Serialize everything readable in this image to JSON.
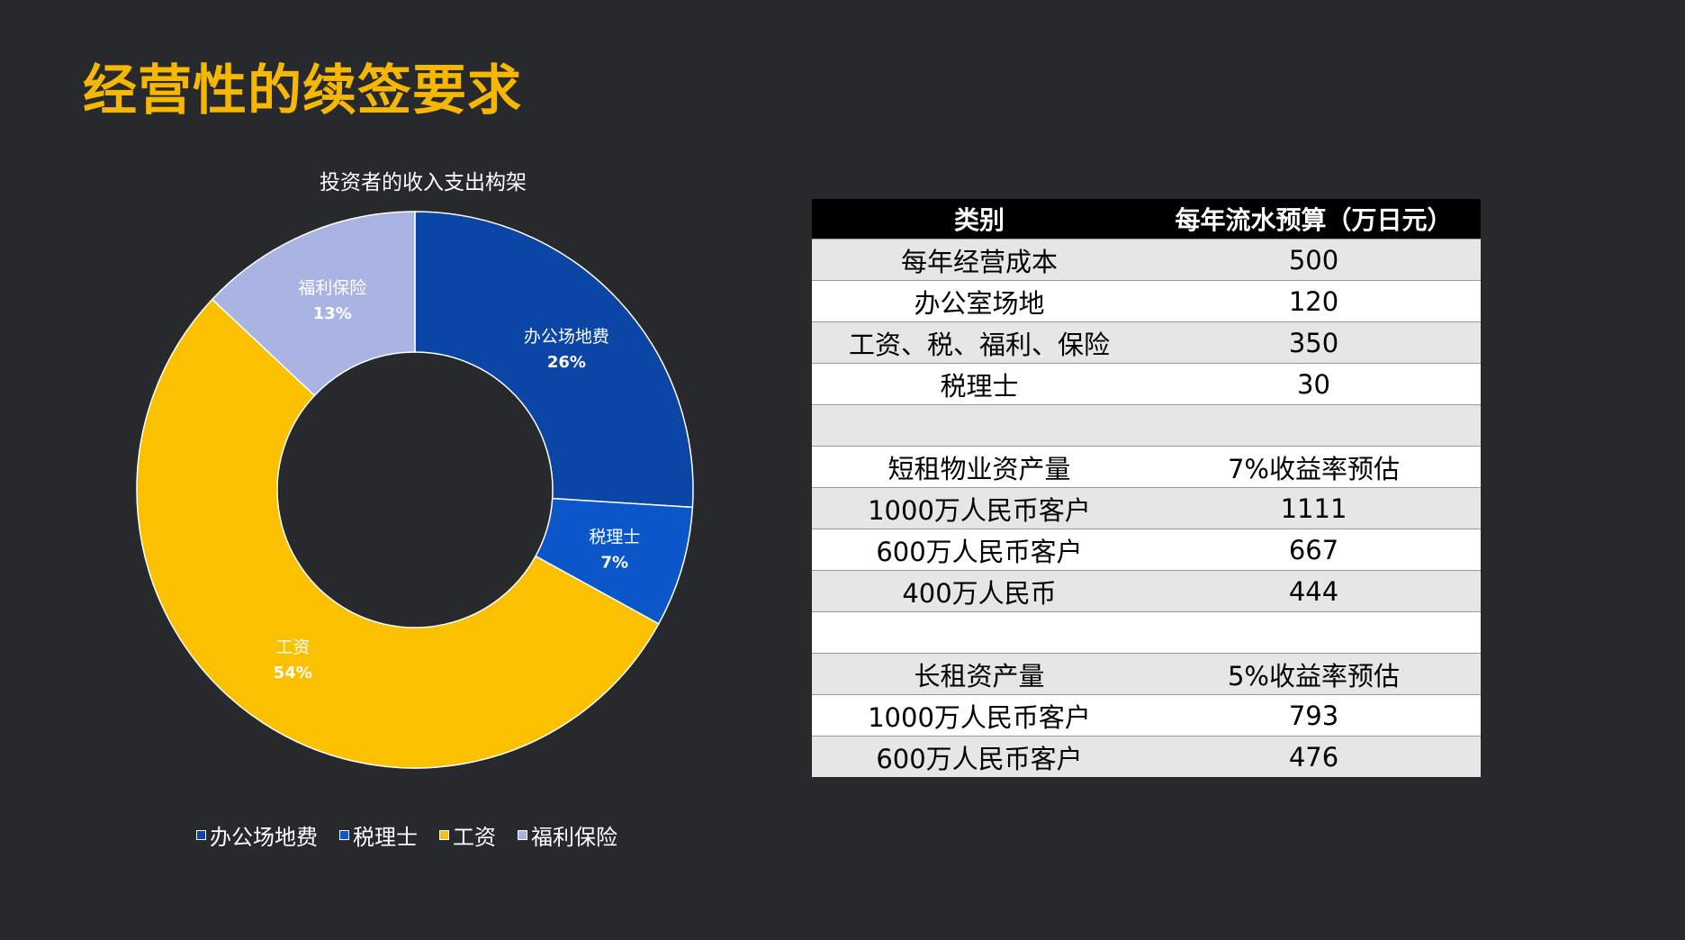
{
  "title": "经营性的续签要求",
  "chart_data": {
    "type": "pie",
    "subtype": "donut",
    "title": "投资者的收入支出构架",
    "categories": [
      "办公场地费",
      "税理士",
      "工资",
      "福利保险"
    ],
    "values": [
      26,
      7,
      54,
      13
    ],
    "labels": [
      "26%",
      "7%",
      "54%",
      "13%"
    ],
    "colors": [
      "#0b45a6",
      "#0b56c9",
      "#fbc101",
      "#aab4e2"
    ],
    "legend": "bottom"
  },
  "table": {
    "headers": [
      "类别",
      "每年流水预算（万日元）"
    ],
    "rows": [
      [
        "每年经营成本",
        "500"
      ],
      [
        "办公室场地",
        "120"
      ],
      [
        "工资、税、福利、保险",
        "350"
      ],
      [
        "税理士",
        "30"
      ],
      [
        "",
        ""
      ],
      [
        "短租物业资产量",
        "7%收益率预估"
      ],
      [
        "1000万人民币客户",
        "1111"
      ],
      [
        "600万人民币客户",
        "667"
      ],
      [
        "400万人民币",
        "444"
      ],
      [
        "",
        ""
      ],
      [
        "长租资产量",
        "5%收益率预估"
      ],
      [
        "1000万人民币客户",
        "793"
      ],
      [
        "600万人民币客户",
        "476"
      ]
    ]
  }
}
